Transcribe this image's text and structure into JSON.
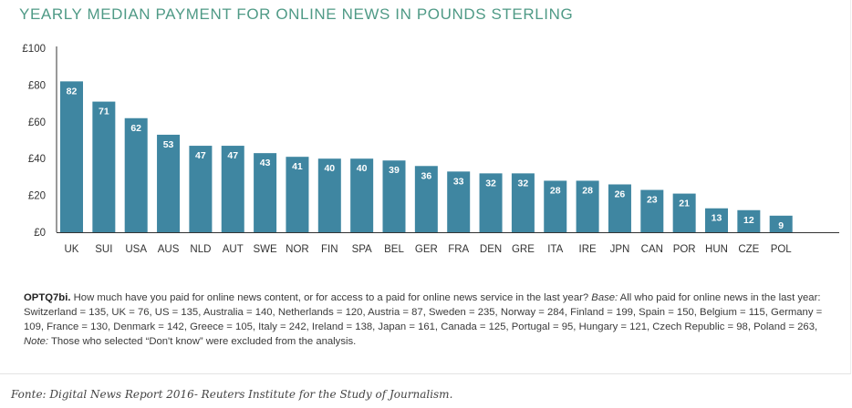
{
  "title": "YEARLY MEDIAN PAYMENT FOR ONLINE NEWS IN POUNDS STERLING",
  "colors": {
    "bar": "#3f86a1",
    "title": "#4f9a86",
    "axis": "#333333",
    "label": "#ffffff"
  },
  "chart_data": {
    "type": "bar",
    "categories": [
      "UK",
      "SUI",
      "USA",
      "AUS",
      "NLD",
      "AUT",
      "SWE",
      "NOR",
      "FIN",
      "SPA",
      "BEL",
      "GER",
      "FRA",
      "DEN",
      "GRE",
      "ITA",
      "IRE",
      "JPN",
      "CAN",
      "POR",
      "HUN",
      "CZE",
      "POL"
    ],
    "values": [
      82,
      71,
      62,
      53,
      47,
      47,
      43,
      41,
      40,
      40,
      39,
      36,
      33,
      32,
      32,
      28,
      28,
      26,
      23,
      21,
      13,
      12,
      9
    ],
    "data_labels": [
      "82",
      "71",
      "62",
      "53",
      "47",
      "47",
      "43",
      "41",
      "40",
      "40",
      "39",
      "36",
      "33",
      "32",
      "32",
      "28",
      "28",
      "26",
      "23",
      "21",
      "13",
      "12",
      "9"
    ],
    "yticks": [
      0,
      20,
      40,
      60,
      80,
      100
    ],
    "ytick_labels": [
      "£0",
      "£20",
      "£40",
      "£60",
      "£80",
      "£100"
    ],
    "ylim": [
      0,
      100
    ],
    "xlabel": "",
    "ylabel": "",
    "grid": false
  },
  "note": {
    "code": "OPTQ7bi.",
    "question": " How much have you paid for online news content, or for access to a paid for online news service in the last year? ",
    "base_label": "Base:",
    "base_text": " All who paid for online news in the last year: Switzerland = 135, UK = 76, US = 135, Australia = 140, Netherlands = 120, Austria = 87, Sweden = 235, Norway = 284, Finland = 199, Spain = 150, Belgium = 115, Germany = 109, France = 130, Denmark = 142, Greece = 105, Italy = 242, Ireland = 138, Japan = 161, Canada = 125, Portugal = 95, Hungary = 121, Czech Republic = 98, Poland = 263, ",
    "note_label": "Note:",
    "note_text": " Those who selected “Don't know” were excluded from the analysis."
  },
  "source": "Fonte: Digital News Report 2016- Reuters Institute for the Study of Journalism."
}
